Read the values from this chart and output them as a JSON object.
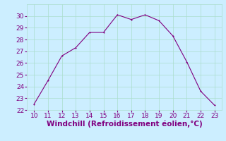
{
  "x": [
    10,
    11,
    12,
    13,
    14,
    15,
    16,
    17,
    18,
    19,
    20,
    21,
    22,
    23
  ],
  "y": [
    22.5,
    24.5,
    26.6,
    27.3,
    28.6,
    28.6,
    30.1,
    29.7,
    30.1,
    29.6,
    28.3,
    26.1,
    23.6,
    22.4
  ],
  "line_color": "#800080",
  "marker_color": "#800080",
  "bg_color": "#cceeff",
  "grid_color": "#aaddcc",
  "xlabel": "Windchill (Refroidissement éolien,°C)",
  "xlabel_color": "#800080",
  "tick_color": "#800080",
  "xlim": [
    9.5,
    23.5
  ],
  "ylim": [
    22,
    31
  ],
  "xticks": [
    10,
    11,
    12,
    13,
    14,
    15,
    16,
    17,
    18,
    19,
    20,
    21,
    22,
    23
  ],
  "yticks": [
    22,
    23,
    24,
    25,
    26,
    27,
    28,
    29,
    30
  ],
  "tick_fontsize": 6.5,
  "xlabel_fontsize": 7.5,
  "linewidth": 0.8,
  "markersize": 2.0
}
